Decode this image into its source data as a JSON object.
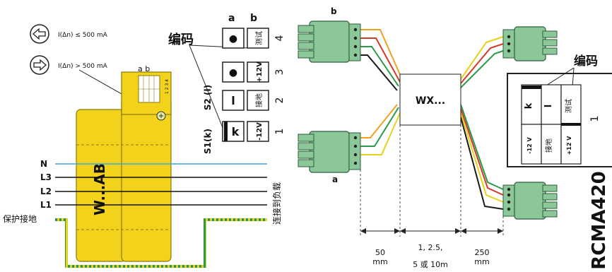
{
  "thresholds": {
    "low": "I(Δn) ≤ 500 mA",
    "high": "I(Δn) > 500 mA"
  },
  "device": {
    "name": "W...AB",
    "ab_label": "a b",
    "scale_digits": "1 2 3 4"
  },
  "lines": {
    "n": "N",
    "l3": "L3",
    "l2": "L2",
    "l1": "L1",
    "pe": "保护接地",
    "load": "连接到负载"
  },
  "coding_table": {
    "title": "编码",
    "col_a": "a",
    "col_b": "b",
    "s1": "S1(k)",
    "s2": "S2 (l)",
    "rows": [
      {
        "num": "4",
        "a": "●",
        "b": "测试"
      },
      {
        "num": "3",
        "a": "●",
        "b": "+12V"
      },
      {
        "num": "2",
        "a": "l",
        "b": "接地"
      },
      {
        "num": "1",
        "a": "k",
        "b": "-12V"
      }
    ]
  },
  "cable": {
    "label_b": "b",
    "label_a": "a",
    "converter": "WX...",
    "dist1_value": "50",
    "dist1_unit": "mm",
    "dist2_line1": "1, 2.5,",
    "dist2_line2": "5 或 10m",
    "dist3_value": "250",
    "dist3_unit": "mm"
  },
  "rcma": {
    "coding_title": "编码",
    "k": "k",
    "l": "l",
    "test": "测试",
    "minus12": "-12 V",
    "ground": "接地",
    "plus12": "+12 V",
    "number": "1",
    "model": "RCMA420"
  },
  "colors": {
    "yellow": "#f2d21b",
    "yellow_dark": "#8a7a10",
    "green_connector": "#8cc79a",
    "wire_orange": "#f0a020",
    "wire_red": "#d23a2a",
    "wire_green": "#2a9a4a",
    "wire_yellow": "#e7d21a",
    "wire_black": "#1a1a1a",
    "n_line": "#3fa9e0"
  }
}
